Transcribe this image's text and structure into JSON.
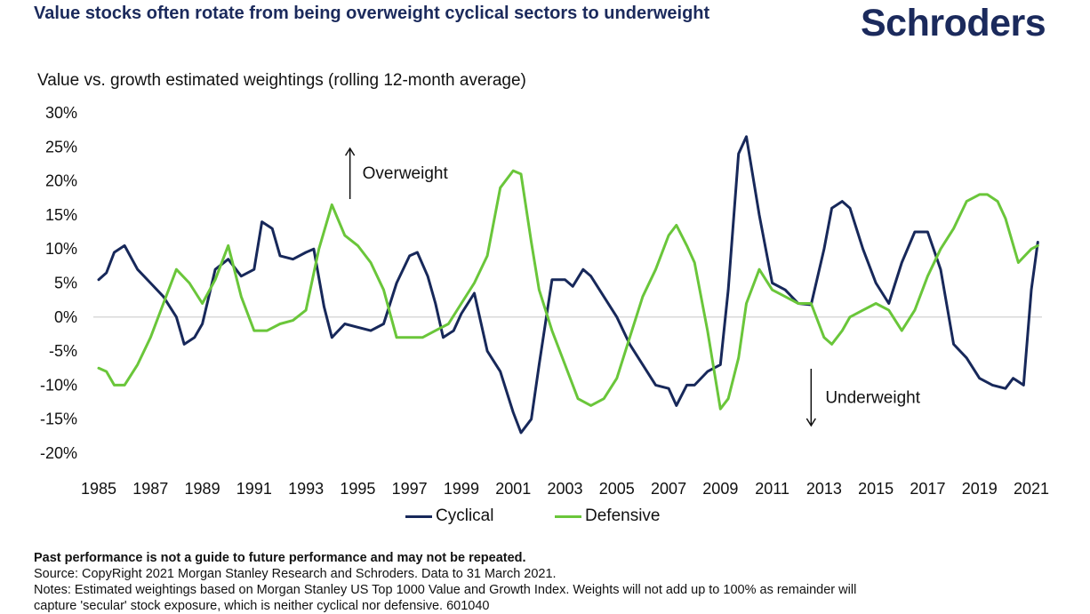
{
  "header": {
    "headline": "Value stocks often rotate from being overweight cyclical sectors to underweight",
    "logo": "Schroders"
  },
  "colors": {
    "navy": "#1b2a5c",
    "cyclical": "#17285a",
    "defensive": "#6ac63a"
  },
  "chart_data": {
    "type": "line",
    "title": "Value vs. growth estimated weightings (rolling 12-month average)",
    "xlabel": "",
    "ylabel": "",
    "ylim": [
      -20,
      30
    ],
    "xlim": [
      1985,
      2021.3
    ],
    "yticks": [
      "30%",
      "25%",
      "20%",
      "15%",
      "10%",
      "5%",
      "0%",
      "-5%",
      "-10%",
      "-15%",
      "-20%"
    ],
    "xticks": [
      "1985",
      "1987",
      "1989",
      "1991",
      "1993",
      "1995",
      "1997",
      "1999",
      "2001",
      "2003",
      "2005",
      "2007",
      "2009",
      "2011",
      "2013",
      "2015",
      "2017",
      "2019",
      "2021"
    ],
    "grid": false,
    "zero_line": true,
    "legend_position": "bottom-center",
    "annotations": [
      {
        "text": "Overweight",
        "x": 1994.7,
        "y": 21,
        "arrow": "up"
      },
      {
        "text": "Underweight",
        "x": 2012.5,
        "y": -12,
        "arrow": "down"
      }
    ],
    "series": [
      {
        "name": "Cyclical",
        "color": "#17285a",
        "x": [
          1985,
          1985.3,
          1985.6,
          1986,
          1986.5,
          1987,
          1987.5,
          1988,
          1988.3,
          1988.7,
          1989,
          1989.5,
          1990,
          1990.5,
          1991,
          1991.3,
          1991.7,
          1992,
          1992.5,
          1993,
          1993.3,
          1993.7,
          1994,
          1994.5,
          1995,
          1995.5,
          1996,
          1996.5,
          1997,
          1997.3,
          1997.7,
          1998,
          1998.3,
          1998.7,
          1999,
          1999.5,
          2000,
          2000.5,
          2001,
          2001.3,
          2001.7,
          2002,
          2002.5,
          2003,
          2003.3,
          2003.7,
          2004,
          2004.5,
          2005,
          2005.5,
          2006,
          2006.5,
          2007,
          2007.3,
          2007.7,
          2008,
          2008.5,
          2009,
          2009.3,
          2009.7,
          2010,
          2010.5,
          2011,
          2011.5,
          2012,
          2012.5,
          2013,
          2013.3,
          2013.7,
          2014,
          2014.5,
          2015,
          2015.5,
          2016,
          2016.5,
          2017,
          2017.5,
          2018,
          2018.5,
          2019,
          2019.5,
          2020,
          2020.3,
          2020.7,
          2021,
          2021.25
        ],
        "y": [
          5.5,
          6.5,
          9.5,
          10.5,
          7,
          5,
          3,
          0,
          -4,
          -3,
          -1,
          7,
          8.5,
          6,
          7,
          14,
          13,
          9,
          8.5,
          9.5,
          10,
          1.5,
          -3,
          -1,
          -1.5,
          -2,
          -1,
          5,
          9,
          9.5,
          6,
          2,
          -3,
          -2,
          0.5,
          3.5,
          -5,
          -8,
          -14,
          -17,
          -15,
          -7,
          5.5,
          5.5,
          4.5,
          7,
          6,
          3,
          0,
          -4,
          -7,
          -10,
          -10.5,
          -13,
          -10,
          -10,
          -8,
          -7,
          4,
          24,
          26.5,
          15,
          5,
          4,
          2,
          1.8,
          10,
          16,
          17,
          16,
          10,
          5,
          2,
          8,
          12.5,
          12.5,
          7,
          -4,
          -6,
          -9,
          -10,
          -10.5,
          -9,
          -10,
          4,
          11
        ]
      },
      {
        "name": "Defensive",
        "color": "#6ac63a",
        "x": [
          1985,
          1985.3,
          1985.6,
          1986,
          1986.5,
          1987,
          1987.5,
          1988,
          1988.5,
          1989,
          1989.5,
          1990,
          1990.5,
          1991,
          1991.5,
          1992,
          1992.5,
          1993,
          1993.5,
          1994,
          1994.5,
          1995,
          1995.5,
          1996,
          1996.5,
          1997,
          1997.5,
          1998,
          1998.5,
          1999,
          1999.5,
          2000,
          2000.5,
          2001,
          2001.3,
          2001.7,
          2002,
          2002.5,
          2003,
          2003.5,
          2004,
          2004.5,
          2005,
          2005.5,
          2006,
          2006.5,
          2007,
          2007.3,
          2007.7,
          2008,
          2008.5,
          2009,
          2009.3,
          2009.7,
          2010,
          2010.5,
          2011,
          2011.5,
          2012,
          2012.5,
          2013,
          2013.3,
          2013.7,
          2014,
          2014.5,
          2015,
          2015.5,
          2016,
          2016.5,
          2017,
          2017.5,
          2018,
          2018.5,
          2019,
          2019.3,
          2019.7,
          2020,
          2020.5,
          2021,
          2021.25
        ],
        "y": [
          -7.5,
          -8,
          -10,
          -10,
          -7,
          -3,
          2,
          7,
          5,
          2,
          5.5,
          10.5,
          3,
          -2,
          -2,
          -1,
          -0.5,
          1,
          10,
          16.5,
          12,
          10.5,
          8,
          4,
          -3,
          -3,
          -3,
          -2,
          -1,
          2,
          5,
          9,
          19,
          21.5,
          21,
          11,
          4,
          -2,
          -7,
          -12,
          -13,
          -12,
          -9,
          -3,
          3,
          7,
          12,
          13.5,
          10.5,
          8,
          -2,
          -13.5,
          -12,
          -6,
          2,
          7,
          4,
          3,
          2,
          2,
          -3,
          -4,
          -2,
          0,
          1,
          2,
          1,
          -2,
          1,
          6,
          10,
          13,
          17,
          18,
          18,
          17,
          14.5,
          8,
          10,
          10.5
        ]
      }
    ]
  },
  "legend": {
    "cyclical": "Cyclical",
    "defensive": "Defensive"
  },
  "footer": {
    "performance": "Past performance is not a guide to future performance and may not be repeated.",
    "source": "Source: CopyRight 2021 Morgan Stanley Research and Schroders. Data to 31 March 2021.",
    "notes": "Notes: Estimated weightings based on Morgan Stanley US Top 1000 Value and Growth Index. Weights will not add up to 100% as remainder will",
    "notes_cont": "capture 'secular' stock exposure, which is neither cyclical nor defensive. 601040"
  }
}
